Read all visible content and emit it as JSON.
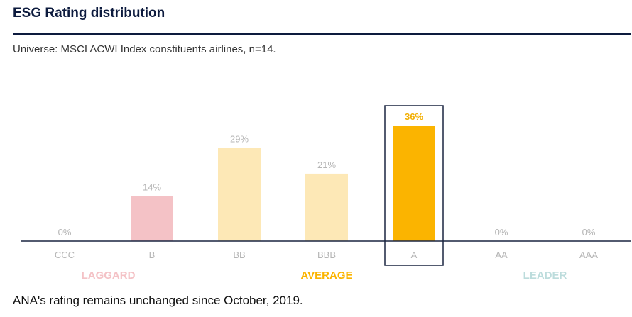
{
  "header": {
    "title": "ESG Rating distribution",
    "subtitle": "Universe: MSCI ACWI Index constituents airlines, n=14."
  },
  "footer": {
    "note": "ANA's rating remains unchanged since October, 2019."
  },
  "chart_data": {
    "type": "bar",
    "title": "ESG Rating distribution",
    "categories": [
      "CCC",
      "B",
      "BB",
      "BBB",
      "A",
      "AA",
      "AAA"
    ],
    "values": [
      0,
      14,
      29,
      21,
      36,
      0,
      0
    ],
    "value_labels": [
      "0%",
      "14%",
      "29%",
      "21%",
      "36%",
      "0%",
      "0%"
    ],
    "highlight": "A",
    "ylim": [
      0,
      36
    ],
    "grid": false,
    "groups": [
      {
        "label": "LAGGARD",
        "categories": [
          "CCC",
          "B"
        ],
        "color": "#f4c2c6"
      },
      {
        "label": "AVERAGE",
        "categories": [
          "BB",
          "BBB",
          "A"
        ],
        "color": "#fbb400"
      },
      {
        "label": "LEADER",
        "categories": [
          "AA",
          "AAA"
        ],
        "color": "#bcdcdc"
      }
    ],
    "colors": {
      "laggard_bar": "#f4c2c6",
      "average_bar": "#fde8b6",
      "highlight_bar": "#fbb400",
      "highlight_label": "#f2ae00",
      "muted_label": "#b5b5b5",
      "highlight_category": "#222222",
      "frame": "#1a2540",
      "baseline": "#1a2540"
    }
  }
}
